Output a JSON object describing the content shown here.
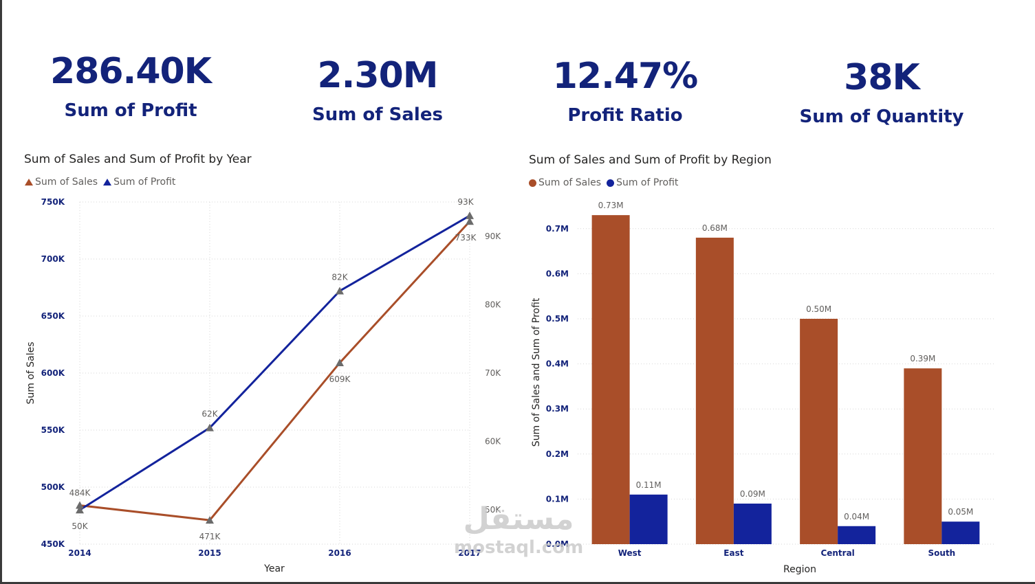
{
  "kpis": [
    {
      "value": "286.40K",
      "label": "Sum of Profit"
    },
    {
      "value": "2.30M",
      "label": "Sum of Sales"
    },
    {
      "value": "12.47%",
      "label": "Profit Ratio"
    },
    {
      "value": "38K",
      "label": "Sum of Quantity"
    }
  ],
  "colors": {
    "sales": "#a94e29",
    "profit": "#13239c",
    "kpi_text": "#13237a"
  },
  "watermark": {
    "arabic": "مستقل",
    "latin": "mostaql.com"
  },
  "chart_data": [
    {
      "type": "line",
      "title": "Sum of Sales and Sum of Profit by Year",
      "xlabel": "Year",
      "ylabel": "Sum of Sales",
      "y2label": "Sum of Profit",
      "legend_position": "top-left",
      "legend": [
        "Sum of Sales",
        "Sum of Profit"
      ],
      "x": [
        "2014",
        "2015",
        "2016",
        "2017"
      ],
      "ylim": [
        450000,
        750000
      ],
      "y2lim": [
        45000,
        95000
      ],
      "yticks": [
        "450K",
        "500K",
        "550K",
        "600K",
        "650K",
        "700K",
        "750K"
      ],
      "y2ticks": [
        "50K",
        "60K",
        "70K",
        "80K",
        "90K"
      ],
      "grid": true,
      "series": [
        {
          "name": "Sum of Sales",
          "axis": "left",
          "values": [
            484000,
            471000,
            609000,
            733000
          ],
          "labels": [
            "484K",
            "471K",
            "609K",
            "733K"
          ]
        },
        {
          "name": "Sum of Profit",
          "axis": "right",
          "values": [
            50000,
            62000,
            82000,
            93000
          ],
          "labels": [
            "50K",
            "62K",
            "82K",
            "93K"
          ]
        }
      ]
    },
    {
      "type": "bar",
      "title": "Sum of Sales and Sum of Profit by Region",
      "xlabel": "Region",
      "ylabel": "Sum of Sales and Sum of Profit",
      "legend_position": "top-left",
      "legend": [
        "Sum of Sales",
        "Sum of Profit"
      ],
      "categories": [
        "West",
        "East",
        "Central",
        "South"
      ],
      "ylim": [
        0,
        0.75
      ],
      "yticks": [
        "0.0M",
        "0.1M",
        "0.2M",
        "0.3M",
        "0.4M",
        "0.5M",
        "0.6M",
        "0.7M"
      ],
      "grid": true,
      "series": [
        {
          "name": "Sum of Sales",
          "values": [
            0.73,
            0.68,
            0.5,
            0.39
          ],
          "labels": [
            "0.73M",
            "0.68M",
            "0.50M",
            "0.39M"
          ]
        },
        {
          "name": "Sum of Profit",
          "values": [
            0.11,
            0.09,
            0.04,
            0.05
          ],
          "labels": [
            "0.11M",
            "0.09M",
            "0.04M",
            "0.05M"
          ]
        }
      ]
    }
  ]
}
